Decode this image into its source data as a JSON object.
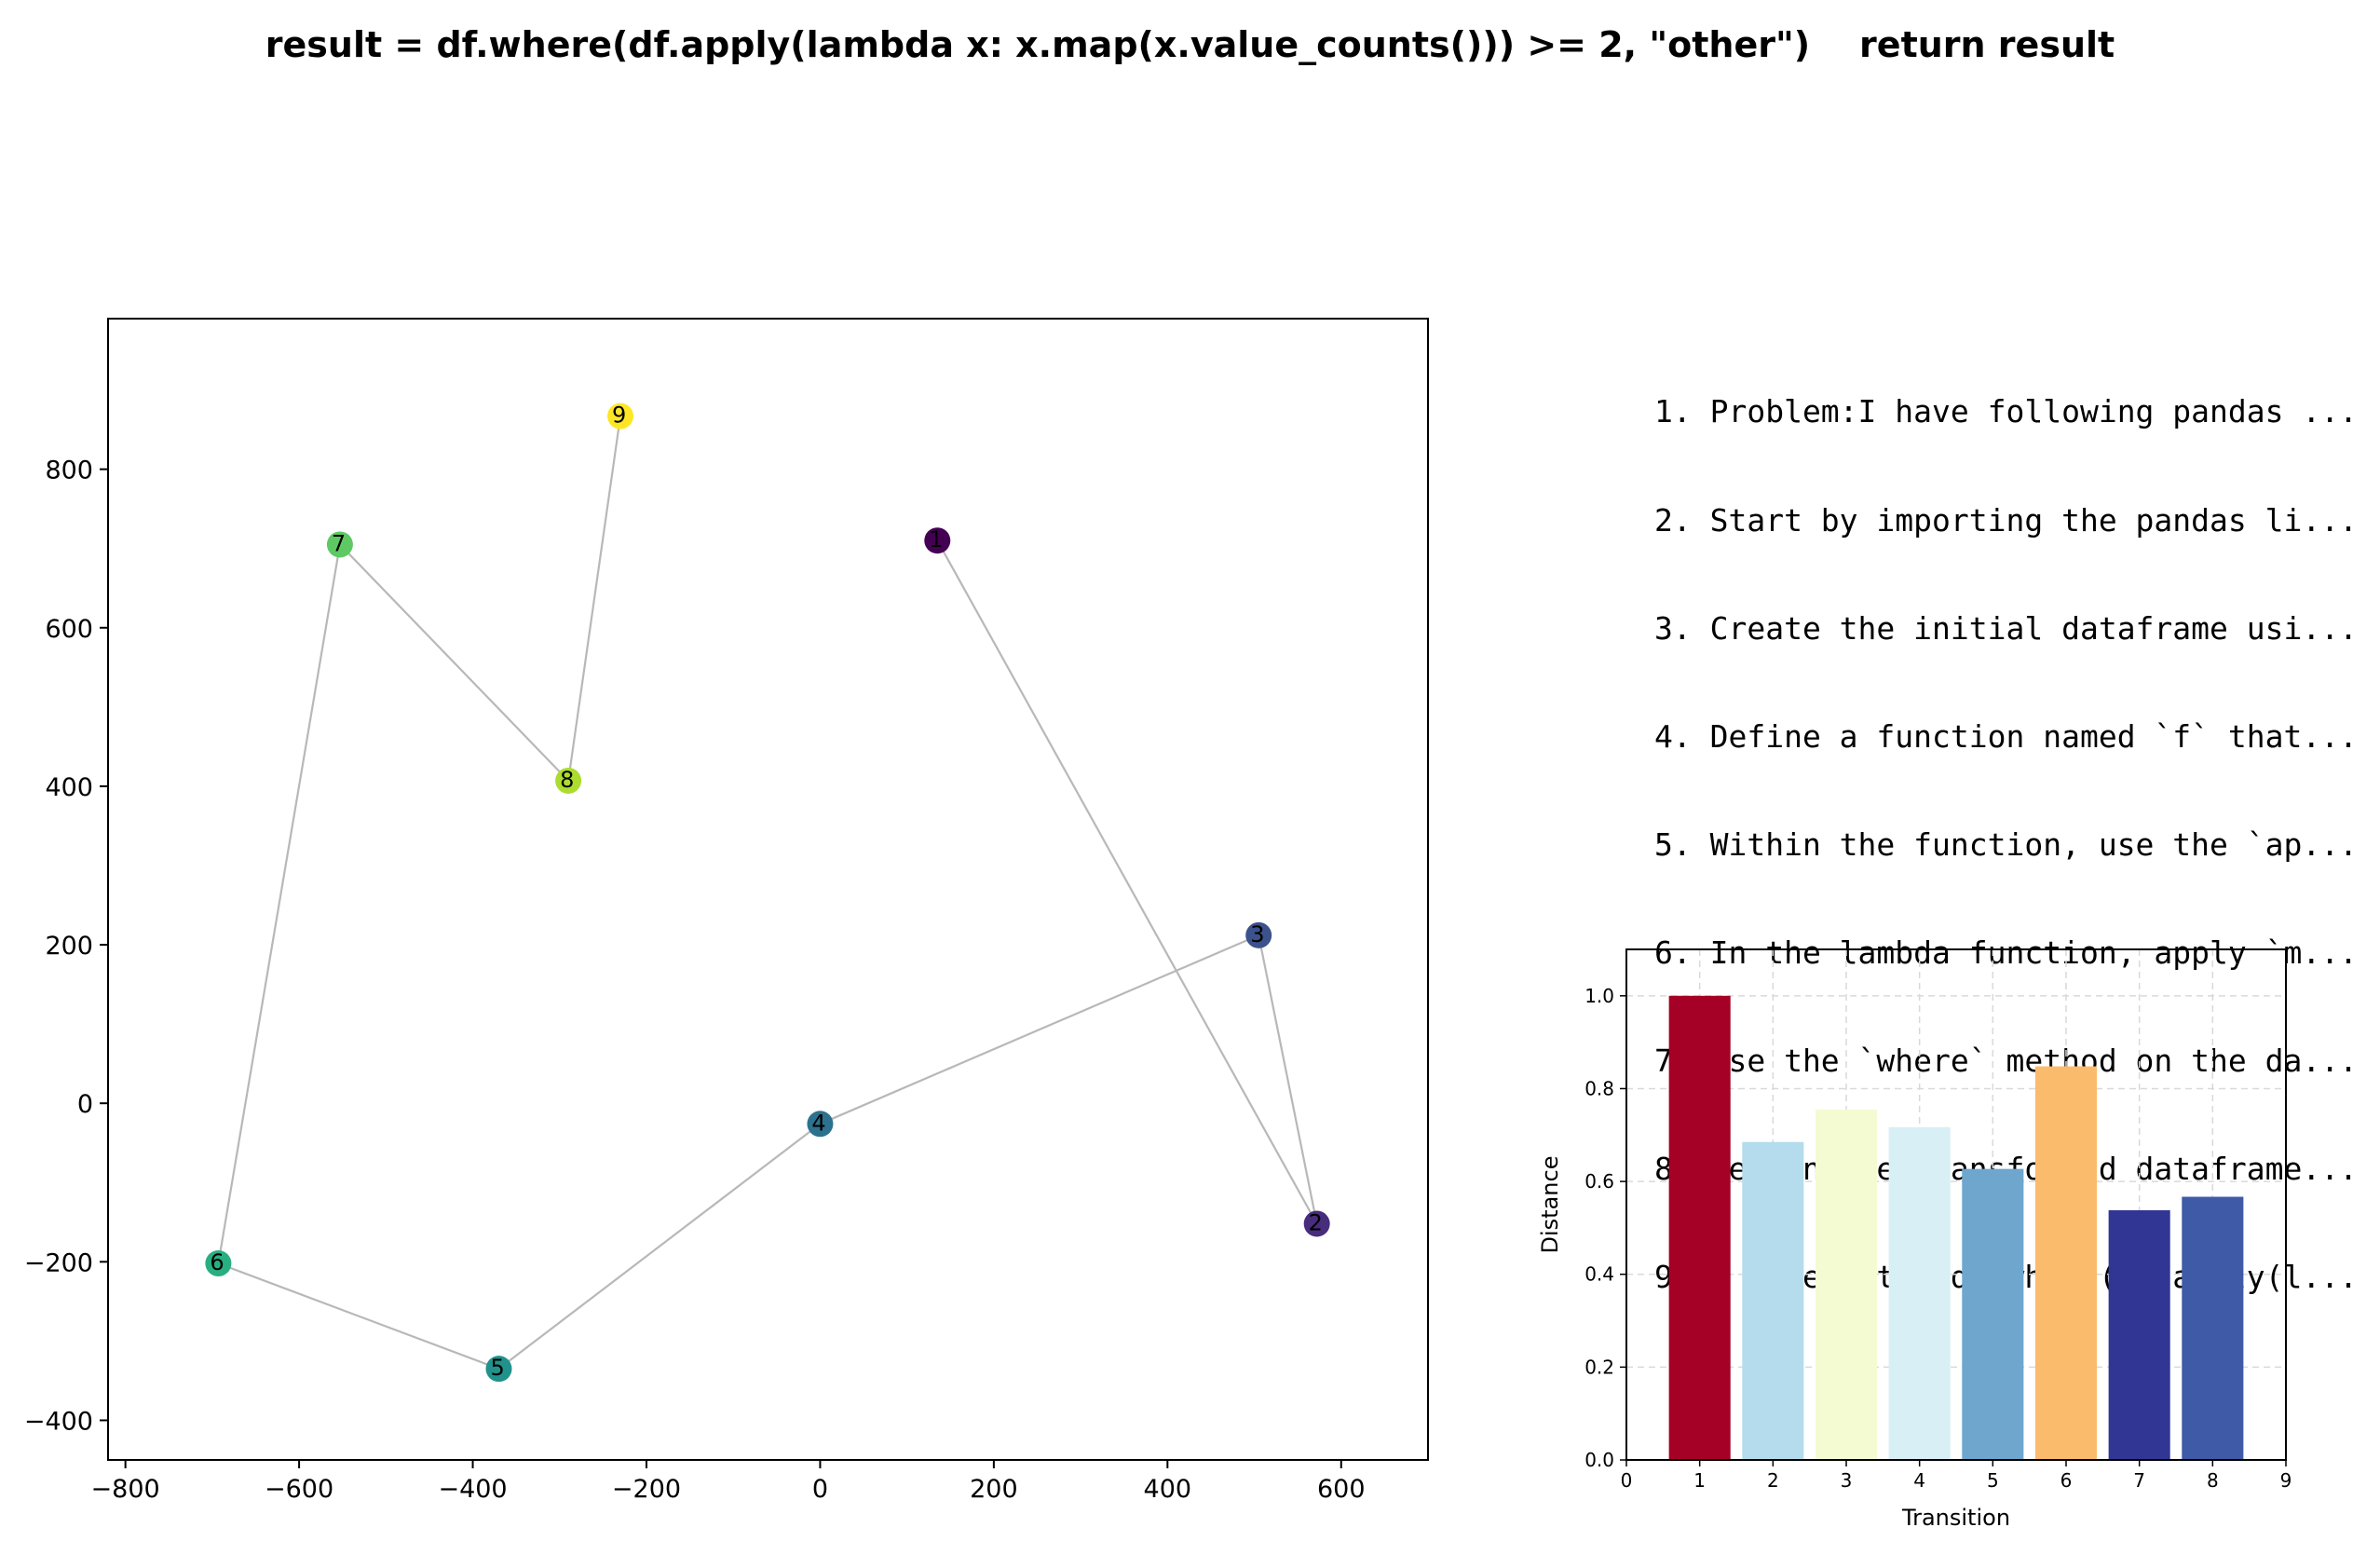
{
  "title": "result = df.where(df.apply(lambda x: x.map(x.value_counts())) >= 2, \"other\")    return result",
  "steps": [
    "1. Problem:I have following pandas ...",
    "2. Start by importing the pandas li...",
    "3. Create the initial dataframe usi...",
    "4. Define a function named `f` that...",
    "5. Within the function, use the `ap...",
    "6. In the lambda function, apply `m...",
    "7. Use the `where` method on the da...",
    "8. Return the transformed dataframe...",
    "9.     result = df.where(df.apply(l..."
  ],
  "chart_data": [
    {
      "type": "scatter",
      "title": "",
      "xlabel": "",
      "ylabel": "",
      "xlim": [
        -820,
        700
      ],
      "ylim": [
        -450,
        990
      ],
      "xticks": [
        -800,
        -600,
        -400,
        -200,
        0,
        200,
        400,
        600
      ],
      "yticks": [
        -400,
        -200,
        0,
        200,
        400,
        600,
        800
      ],
      "grid": false,
      "connect_points": true,
      "line_color": "#b8b8b8",
      "colormap": "viridis",
      "points": [
        {
          "label": "1",
          "x": 135,
          "y": 710,
          "color": "#440154"
        },
        {
          "label": "2",
          "x": 572,
          "y": -152,
          "color": "#472d7b"
        },
        {
          "label": "3",
          "x": 505,
          "y": 212,
          "color": "#3b528b"
        },
        {
          "label": "4",
          "x": 0,
          "y": -26,
          "color": "#2c728e"
        },
        {
          "label": "5",
          "x": -370,
          "y": -335,
          "color": "#21918c"
        },
        {
          "label": "6",
          "x": -693,
          "y": -202,
          "color": "#28ae80"
        },
        {
          "label": "7",
          "x": -553,
          "y": 705,
          "color": "#5ec962"
        },
        {
          "label": "8",
          "x": -290,
          "y": 407,
          "color": "#addc30"
        },
        {
          "label": "9",
          "x": -230,
          "y": 867,
          "color": "#fde725"
        }
      ]
    },
    {
      "type": "bar",
      "title": "",
      "xlabel": "Transition",
      "ylabel": "Distance",
      "xlim": [
        0,
        9
      ],
      "ylim": [
        0,
        1.1
      ],
      "xticks": [
        0,
        1,
        2,
        3,
        4,
        5,
        6,
        7,
        8,
        9
      ],
      "yticks": [
        0.0,
        0.2,
        0.4,
        0.6,
        0.8,
        1.0
      ],
      "ytick_labels": [
        "0.0",
        "0.2",
        "0.4",
        "0.6",
        "0.8",
        "1.0"
      ],
      "grid": true,
      "categories": [
        1,
        2,
        3,
        4,
        5,
        6,
        7,
        8
      ],
      "values": [
        1.0,
        0.685,
        0.755,
        0.717,
        0.627,
        0.848,
        0.538,
        0.567
      ],
      "colors": [
        "#a50026",
        "#b4dcec",
        "#f4fad2",
        "#d9eff6",
        "#6ea6cd",
        "#fbbb6c",
        "#313695",
        "#3f5aa7"
      ]
    }
  ]
}
